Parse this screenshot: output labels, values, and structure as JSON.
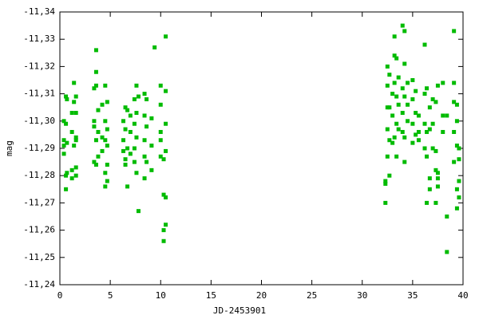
{
  "chart_data": {
    "type": "scatter",
    "x_label": "JD-2453901",
    "y_label": "mag",
    "color": "#00bb00",
    "xlim": [
      0,
      40
    ],
    "xticks": [
      0,
      5,
      10,
      15,
      20,
      25,
      30,
      35,
      40
    ],
    "ylim": [
      -11.24,
      -11.34
    ],
    "yticks": [
      {
        "value": -11.34,
        "label": "-11,34"
      },
      {
        "value": -11.33,
        "label": "-11,33"
      },
      {
        "value": -11.32,
        "label": "-11,32"
      },
      {
        "value": -11.31,
        "label": "-11,31"
      },
      {
        "value": -11.3,
        "label": "-11,30"
      },
      {
        "value": -11.29,
        "label": "-11,29"
      },
      {
        "value": -11.28,
        "label": "-11,28"
      },
      {
        "value": -11.27,
        "label": "-11,27"
      },
      {
        "value": -11.26,
        "label": "-11,26"
      },
      {
        "value": -11.25,
        "label": "-11,25"
      },
      {
        "value": -11.24,
        "label": "-11,24"
      }
    ],
    "x": [
      0.4,
      0.4,
      0.4,
      0.4,
      0.6,
      0.6,
      0.6,
      0.6,
      0.7,
      0.7,
      0.7,
      1.2,
      1.2,
      1.2,
      1.2,
      1.4,
      1.4,
      1.4,
      1.6,
      1.6,
      1.6,
      1.6,
      1.6,
      1.6,
      3.4,
      3.4,
      3.4,
      3.4,
      3.6,
      3.6,
      3.6,
      3.6,
      3.6,
      3.8,
      3.8,
      3.8,
      4.2,
      4.2,
      4.2,
      4.5,
      4.5,
      4.5,
      4.5,
      4.5,
      4.7,
      4.7,
      4.7,
      4.7,
      4.7,
      6.3,
      6.3,
      6.3,
      6.5,
      6.5,
      6.5,
      6.5,
      6.7,
      6.7,
      6.7,
      7.0,
      7.0,
      7.0,
      7.4,
      7.4,
      7.4,
      7.4,
      7.6,
      7.6,
      7.6,
      7.6,
      7.8,
      7.8,
      8.4,
      8.4,
      8.4,
      8.4,
      8.4,
      8.6,
      8.6,
      8.6,
      9.1,
      9.1,
      9.1,
      9.4,
      10.0,
      10.0,
      10.0,
      10.0,
      10.0,
      10.3,
      10.3,
      10.3,
      10.3,
      10.5,
      10.5,
      10.5,
      10.5,
      10.5,
      10.5,
      32.3,
      32.3,
      32.3,
      32.5,
      32.5,
      32.5,
      32.5,
      32.5,
      32.7,
      32.7,
      32.7,
      32.7,
      33.0,
      33.0,
      33.0,
      33.2,
      33.2,
      33.2,
      33.2,
      33.4,
      33.4,
      33.4,
      33.4,
      33.6,
      33.6,
      33.6,
      34.0,
      34.0,
      34.0,
      34.0,
      34.2,
      34.2,
      34.2,
      34.2,
      34.2,
      34.5,
      34.5,
      34.5,
      35.0,
      35.0,
      35.0,
      35.0,
      35.3,
      35.3,
      35.3,
      35.6,
      35.6,
      35.6,
      36.2,
      36.2,
      36.2,
      36.2,
      36.4,
      36.4,
      36.4,
      36.4,
      36.7,
      36.7,
      36.7,
      36.7,
      37.0,
      37.0,
      37.0,
      37.3,
      37.3,
      37.3,
      37.3,
      37.5,
      37.5,
      37.5,
      37.5,
      38.0,
      38.0,
      38.0,
      38.4,
      38.4,
      38.4,
      39.1,
      39.1,
      39.1,
      39.1,
      39.1,
      39.4,
      39.4,
      39.4,
      39.4,
      39.4,
      39.6,
      39.6,
      39.6,
      39.6
    ],
    "values": [
      -11.3,
      -11.291,
      -11.288,
      -11.293,
      -11.309,
      -11.299,
      -11.28,
      -11.275,
      -11.308,
      -11.292,
      -11.281,
      -11.303,
      -11.296,
      -11.282,
      -11.279,
      -11.314,
      -11.307,
      -11.291,
      -11.309,
      -11.303,
      -11.294,
      -11.283,
      -11.28,
      -11.293,
      -11.312,
      -11.3,
      -11.285,
      -11.298,
      -11.326,
      -11.318,
      -11.313,
      -11.293,
      -11.284,
      -11.304,
      -11.296,
      -11.287,
      -11.306,
      -11.294,
      -11.289,
      -11.313,
      -11.3,
      -11.281,
      -11.276,
      -11.293,
      -11.307,
      -11.297,
      -11.291,
      -11.284,
      -11.278,
      -11.3,
      -11.293,
      -11.289,
      -11.305,
      -11.297,
      -11.286,
      -11.284,
      -11.304,
      -11.29,
      -11.276,
      -11.302,
      -11.296,
      -11.288,
      -11.308,
      -11.299,
      -11.29,
      -11.285,
      -11.313,
      -11.303,
      -11.294,
      -11.281,
      -11.309,
      -11.267,
      -11.31,
      -11.302,
      -11.293,
      -11.287,
      -11.279,
      -11.308,
      -11.298,
      -11.285,
      -11.301,
      -11.291,
      -11.282,
      -11.327,
      -11.313,
      -11.306,
      -11.296,
      -11.293,
      -11.287,
      -11.286,
      -11.273,
      -11.26,
      -11.256,
      -11.331,
      -11.311,
      -11.299,
      -11.289,
      -11.272,
      -11.262,
      -11.278,
      -11.277,
      -11.27,
      -11.32,
      -11.313,
      -11.305,
      -11.297,
      -11.287,
      -11.317,
      -11.305,
      -11.293,
      -11.28,
      -11.31,
      -11.302,
      -11.292,
      -11.331,
      -11.324,
      -11.314,
      -11.294,
      -11.323,
      -11.309,
      -11.299,
      -11.287,
      -11.316,
      -11.306,
      -11.297,
      -11.335,
      -11.312,
      -11.303,
      -11.296,
      -11.333,
      -11.321,
      -11.309,
      -11.294,
      -11.285,
      -11.314,
      -11.306,
      -11.3,
      -11.315,
      -11.308,
      -11.299,
      -11.292,
      -11.311,
      -11.303,
      -11.295,
      -11.302,
      -11.296,
      -11.293,
      -11.328,
      -11.31,
      -11.299,
      -11.29,
      -11.312,
      -11.296,
      -11.287,
      -11.27,
      -11.305,
      -11.297,
      -11.279,
      -11.275,
      -11.308,
      -11.299,
      -11.29,
      -11.307,
      -11.289,
      -11.282,
      -11.27,
      -11.313,
      -11.281,
      -11.279,
      -11.276,
      -11.314,
      -11.302,
      -11.296,
      -11.302,
      -11.265,
      -11.252,
      -11.333,
      -11.314,
      -11.307,
      -11.296,
      -11.285,
      -11.306,
      -11.3,
      -11.291,
      -11.275,
      -11.268,
      -11.29,
      -11.286,
      -11.278,
      -11.272
    ]
  }
}
